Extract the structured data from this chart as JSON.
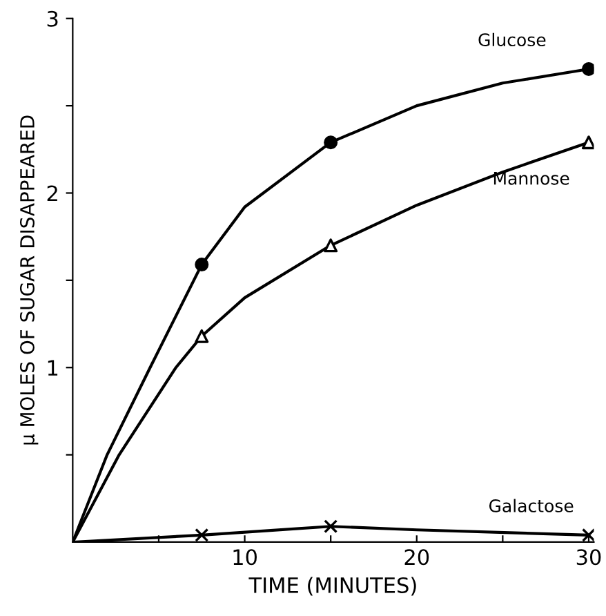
{
  "chart_data": {
    "type": "line",
    "xlabel": "TIME (MINUTES)",
    "ylabel": "μ MOLES OF SUGAR DISAPPEARED",
    "xlim": [
      0,
      30.3
    ],
    "ylim": [
      0,
      3
    ],
    "xticks": [
      {
        "value": 5,
        "label": null
      },
      10,
      {
        "value": 15,
        "label": null
      },
      20,
      {
        "value": 25,
        "label": null
      },
      30
    ],
    "yticks": [
      {
        "value": 0.5,
        "label": null
      },
      1,
      {
        "value": 1.5,
        "label": null
      },
      2,
      {
        "value": 2.5,
        "label": null
      },
      3
    ],
    "grid": false,
    "legend": false,
    "line_style": "solid",
    "series": [
      {
        "name": "Glucose",
        "color": "#000000",
        "x": [
          0,
          2,
          4.5,
          7.5,
          10,
          15,
          20,
          25,
          30
        ],
        "values": [
          0,
          0.5,
          1.0,
          1.59,
          1.92,
          2.29,
          2.5,
          2.63,
          2.71
        ]
      },
      {
        "name": "Mannose",
        "color": "#000000",
        "x": [
          0,
          2.7,
          6,
          7.5,
          10,
          15,
          20,
          25,
          30
        ],
        "values": [
          0,
          0.5,
          1.0,
          1.18,
          1.4,
          1.7,
          1.93,
          2.12,
          2.29
        ]
      },
      {
        "name": "Galactose",
        "color": "#000000",
        "x": [
          0,
          7.5,
          15,
          20,
          30
        ],
        "values": [
          0,
          0.04,
          0.09,
          0.07,
          0.04
        ]
      },
      {
        "color": "#000000",
        "type": "scatter",
        "marker": "circle",
        "x": [
          7.5,
          15,
          30
        ],
        "values": [
          1.59,
          2.29,
          2.71
        ]
      },
      {
        "color": "#000000",
        "type": "scatter",
        "marker": "triangle",
        "x": [
          7.5,
          15,
          30
        ],
        "values": [
          1.18,
          1.7,
          2.29
        ]
      },
      {
        "color": "#000000",
        "type": "scatter",
        "marker": "cross",
        "x": [
          7.5,
          15,
          30
        ],
        "values": [
          0.04,
          0.09,
          0.04
        ]
      }
    ]
  }
}
